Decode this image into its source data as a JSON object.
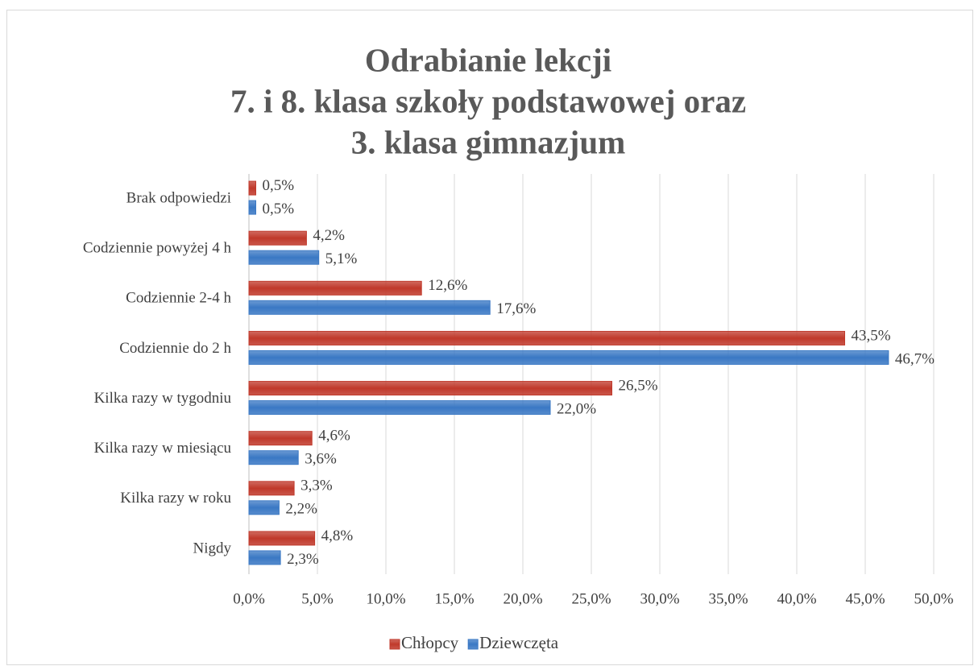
{
  "chart_data": {
    "type": "hbar",
    "title": [
      "Odrabianie lekcji",
      "7. i 8. klasa szkoły podstawowej oraz",
      "3. klasa gimnazjum"
    ],
    "categories": [
      "Brak odpowiedzi",
      "Codziennie powyżej 4 h",
      "Codziennie 2-4 h",
      "Codziennie do 2 h",
      "Kilka razy w tygodniu",
      "Kilka razy w miesiącu",
      "Kilka razy w roku",
      "Nigdy"
    ],
    "series": [
      {
        "name": "Chłopcy",
        "color": "#c0392b",
        "values": [
          0.5,
          4.2,
          12.6,
          43.5,
          26.5,
          4.6,
          3.3,
          4.8
        ],
        "value_labels": [
          "0,5%",
          "4,2%",
          "12,6%",
          "43,5%",
          "26,5%",
          "4,6%",
          "3,3%",
          "4,8%"
        ]
      },
      {
        "name": "Dziewczęta",
        "color": "#3a78c4",
        "values": [
          0.5,
          5.1,
          17.6,
          46.7,
          22.0,
          3.6,
          2.2,
          2.3
        ],
        "value_labels": [
          "0,5%",
          "5,1%",
          "17,6%",
          "46,7%",
          "22,0%",
          "3,6%",
          "2,2%",
          "2,3%"
        ]
      }
    ],
    "xlim": [
      0,
      50
    ],
    "xticks": [
      {
        "value": 0,
        "label": "0,0%"
      },
      {
        "value": 5,
        "label": "5,0%"
      },
      {
        "value": 10,
        "label": "10,0%"
      },
      {
        "value": 15,
        "label": "15,0%"
      },
      {
        "value": 20,
        "label": "20,0%"
      },
      {
        "value": 25,
        "label": "25,0%"
      },
      {
        "value": 30,
        "label": "30,0%"
      },
      {
        "value": 35,
        "label": "35,0%"
      },
      {
        "value": 40,
        "label": "40,0%"
      },
      {
        "value": 45,
        "label": "45,0%"
      },
      {
        "value": 50,
        "label": "50,0%"
      }
    ],
    "grid": true,
    "legend": "bottom"
  }
}
